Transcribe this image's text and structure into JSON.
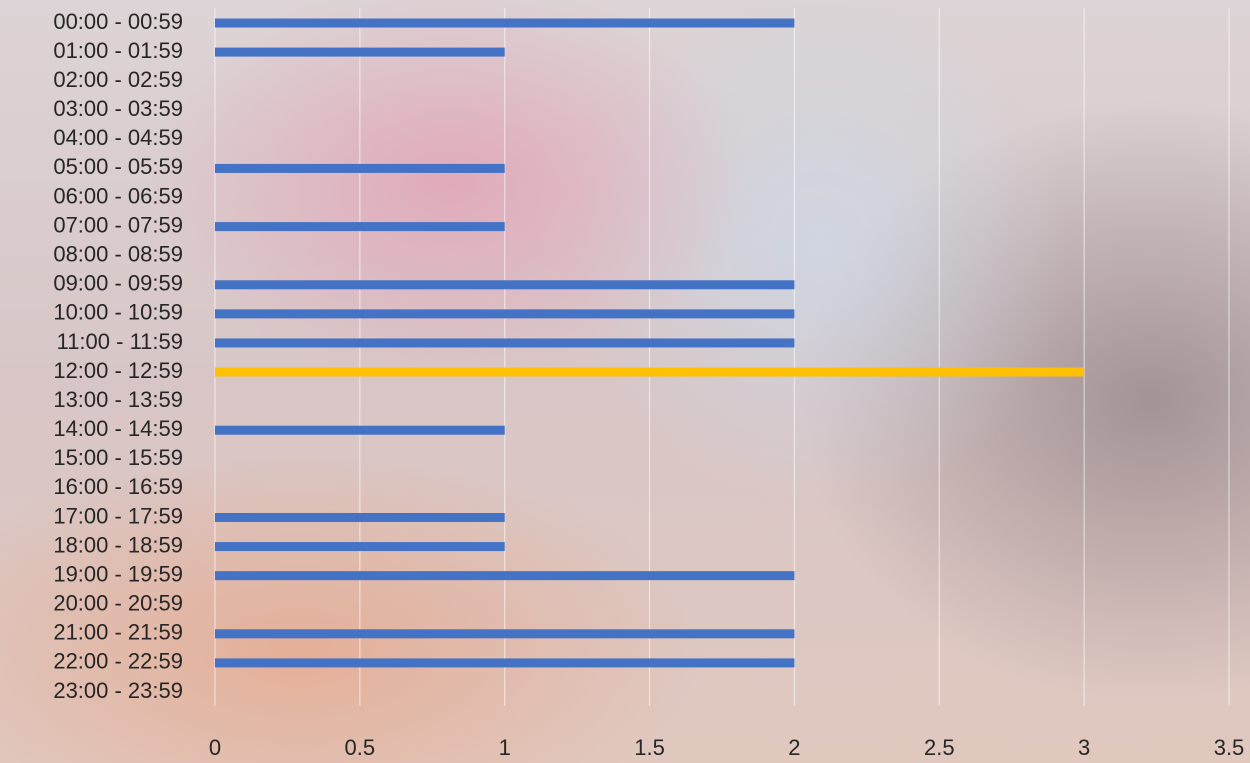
{
  "chart_data": {
    "type": "barh",
    "categories": [
      "00:00 - 00:59",
      "01:00 - 01:59",
      "02:00 - 02:59",
      "03:00 - 03:59",
      "04:00 - 04:59",
      "05:00 - 05:59",
      "06:00 - 06:59",
      "07:00 - 07:59",
      "08:00 - 08:59",
      "09:00 - 09:59",
      "10:00 - 10:59",
      "11:00 - 11:59",
      "12:00 - 12:59",
      "13:00 - 13:59",
      "14:00 - 14:59",
      "15:00 - 15:59",
      "16:00 - 16:59",
      "17:00 - 17:59",
      "18:00 - 18:59",
      "19:00 - 19:59",
      "20:00 - 20:59",
      "21:00 - 21:59",
      "22:00 - 22:59",
      "23:00 - 23:59"
    ],
    "values": [
      2,
      1,
      0,
      0,
      0,
      1,
      0,
      1,
      0,
      2,
      2,
      2,
      3,
      0,
      1,
      0,
      0,
      1,
      1,
      2,
      0,
      2,
      2,
      0
    ],
    "colors": [
      "#4472c4",
      "#4472c4",
      "#4472c4",
      "#4472c4",
      "#4472c4",
      "#4472c4",
      "#4472c4",
      "#4472c4",
      "#4472c4",
      "#4472c4",
      "#4472c4",
      "#4472c4",
      "#ffc000",
      "#4472c4",
      "#4472c4",
      "#4472c4",
      "#4472c4",
      "#4472c4",
      "#4472c4",
      "#4472c4",
      "#4472c4",
      "#4472c4",
      "#4472c4",
      "#4472c4"
    ],
    "xlim": [
      0,
      3.5
    ],
    "xticks": [
      0,
      0.5,
      1,
      1.5,
      2,
      2.5,
      3,
      3.5
    ],
    "grid": true
  }
}
